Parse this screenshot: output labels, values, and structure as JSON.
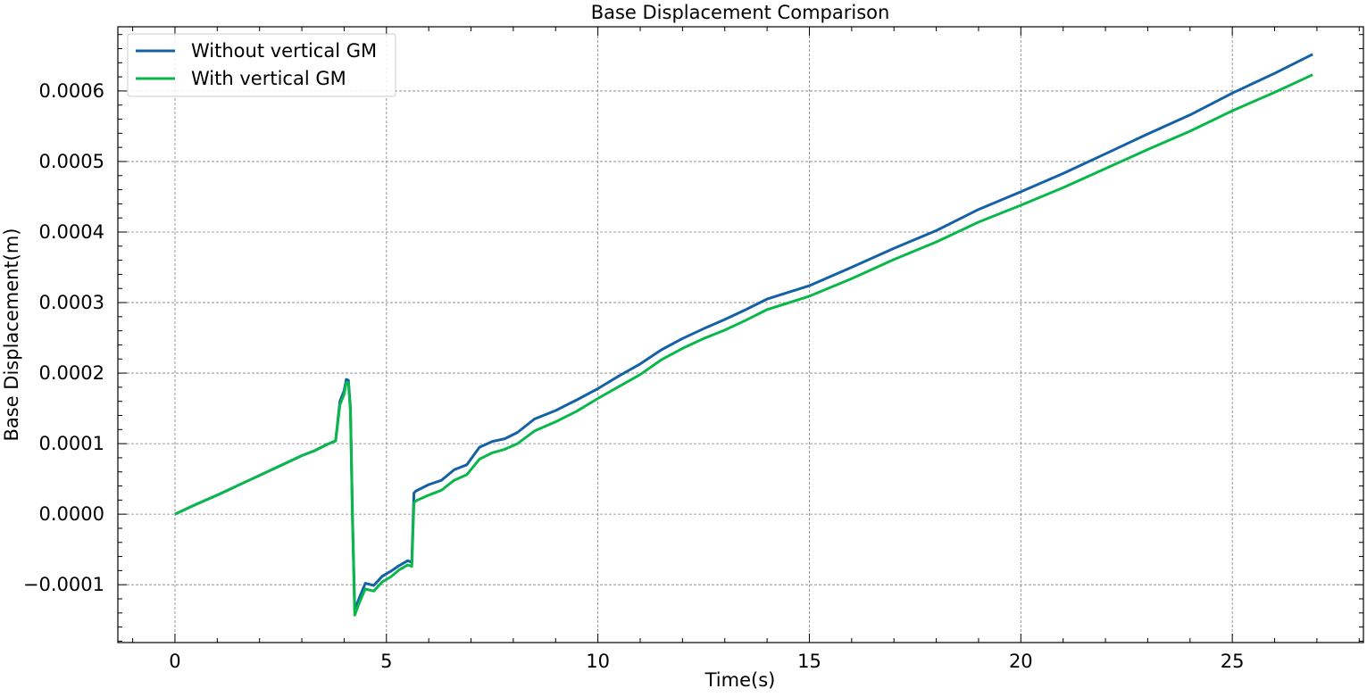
{
  "chart_data": {
    "type": "line",
    "title": "Base Displacement Comparison",
    "xlabel": "Time(s)",
    "ylabel": "Base Displacement(m)",
    "xlim": [
      -1.35,
      28.1
    ],
    "ylim": [
      -0.000182,
      0.000691
    ],
    "x_ticks": [
      0,
      5,
      10,
      15,
      20,
      25
    ],
    "x_tick_labels": [
      "0",
      "5",
      "10",
      "15",
      "20",
      "25"
    ],
    "y_ticks": [
      -0.0001,
      0.0,
      0.0001,
      0.0002,
      0.0003,
      0.0004,
      0.0005,
      0.0006
    ],
    "y_tick_labels": [
      "−0.0001",
      "0.0000",
      "0.0001",
      "0.0002",
      "0.0003",
      "0.0004",
      "0.0005",
      "0.0006"
    ],
    "grid": true,
    "legend_position": "upper-left",
    "series": [
      {
        "name": "Without vertical GM",
        "color": "#1561a6",
        "x": [
          0,
          0.5,
          1.0,
          1.5,
          2.0,
          2.5,
          3.0,
          3.3,
          3.6,
          3.8,
          3.9,
          4.0,
          4.05,
          4.1,
          4.15,
          4.2,
          4.25,
          4.35,
          4.5,
          4.7,
          4.9,
          5.1,
          5.3,
          5.5,
          5.6,
          5.65,
          5.7,
          6.0,
          6.3,
          6.6,
          6.9,
          7.2,
          7.5,
          7.8,
          8.1,
          8.5,
          9.0,
          9.5,
          10.0,
          10.5,
          11.0,
          11.5,
          12.0,
          12.5,
          13.0,
          13.5,
          14.0,
          15.0,
          16.0,
          17.0,
          18.0,
          19.0,
          20.0,
          21.0,
          22.0,
          23.0,
          24.0,
          25.0,
          26.0,
          26.9
        ],
        "y": [
          0.0,
          1.4e-05,
          2.7e-05,
          4.1e-05,
          5.5e-05,
          6.9e-05,
          8.3e-05,
          9e-05,
          9.9e-05,
          0.000104,
          0.00016,
          0.000175,
          0.000191,
          0.00019,
          0.00015,
          -1e-05,
          -0.000135,
          -0.00012,
          -9.8e-05,
          -0.000101,
          -8.8e-05,
          -8.1e-05,
          -7.3e-05,
          -6.6e-05,
          -6.8e-05,
          3e-05,
          3.3e-05,
          4.2e-05,
          4.8e-05,
          6.3e-05,
          7e-05,
          9.5e-05,
          0.000103,
          0.000107,
          0.000116,
          0.000135,
          0.000147,
          0.000162,
          0.000178,
          0.000196,
          0.000213,
          0.000233,
          0.000249,
          0.000263,
          0.000276,
          0.00029,
          0.000305,
          0.000324,
          0.00035,
          0.000377,
          0.000402,
          0.000432,
          0.000457,
          0.000483,
          0.000511,
          0.000539,
          0.000566,
          0.000597,
          0.000625,
          0.000652
        ]
      },
      {
        "name": "With vertical GM",
        "color": "#0ab74a",
        "x": [
          0,
          0.5,
          1.0,
          1.5,
          2.0,
          2.5,
          3.0,
          3.3,
          3.6,
          3.8,
          3.9,
          4.0,
          4.05,
          4.1,
          4.15,
          4.2,
          4.25,
          4.35,
          4.5,
          4.7,
          4.9,
          5.1,
          5.3,
          5.5,
          5.6,
          5.65,
          5.7,
          6.0,
          6.3,
          6.6,
          6.9,
          7.2,
          7.5,
          7.8,
          8.1,
          8.5,
          9.0,
          9.5,
          10.0,
          10.5,
          11.0,
          11.5,
          12.0,
          12.5,
          13.0,
          13.5,
          14.0,
          15.0,
          16.0,
          17.0,
          18.0,
          19.0,
          20.0,
          21.0,
          22.0,
          23.0,
          24.0,
          25.0,
          26.0,
          26.9
        ],
        "y": [
          0.0,
          1.4e-05,
          2.7e-05,
          4.1e-05,
          5.5e-05,
          6.9e-05,
          8.3e-05,
          9e-05,
          9.9e-05,
          0.000104,
          0.000155,
          0.00017,
          0.000187,
          0.000186,
          0.000145,
          -1.5e-05,
          -0.000143,
          -0.000127,
          -0.000106,
          -0.000109,
          -9.6e-05,
          -8.9e-05,
          -7.9e-05,
          -7.2e-05,
          -7.4e-05,
          1.6e-05,
          1.9e-05,
          2.7e-05,
          3.4e-05,
          4.8e-05,
          5.6e-05,
          7.8e-05,
          8.7e-05,
          9.2e-05,
          0.0001,
          0.000118,
          0.000131,
          0.000146,
          0.000164,
          0.000181,
          0.000198,
          0.000219,
          0.000235,
          0.000249,
          0.000261,
          0.000275,
          0.00029,
          0.000309,
          0.000334,
          0.000361,
          0.000386,
          0.000414,
          0.000438,
          0.000463,
          0.00049,
          0.000517,
          0.000543,
          0.000572,
          0.000598,
          0.000623
        ]
      }
    ]
  }
}
